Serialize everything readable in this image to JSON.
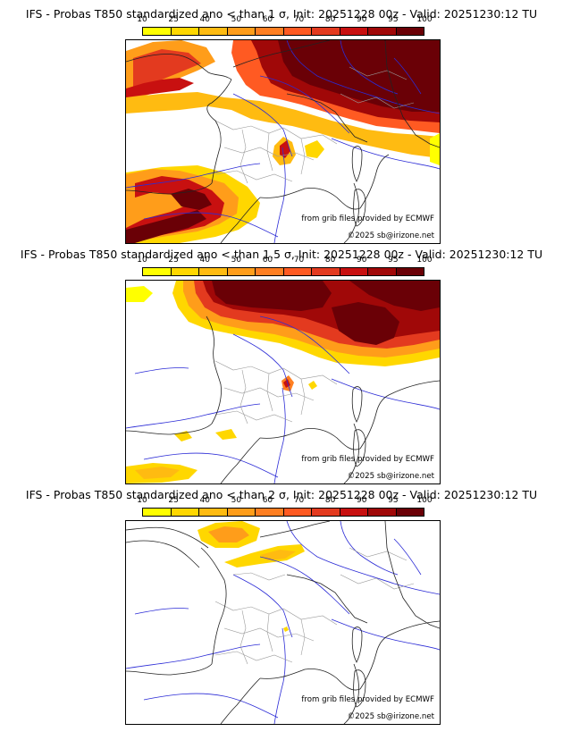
{
  "colorbar": {
    "ticks": [
      "10",
      "25",
      "40",
      "50",
      "60",
      "70",
      "80",
      "90",
      "95",
      "100"
    ],
    "colors": [
      "#ffff00",
      "#ffd700",
      "#ffbb11",
      "#ff9d1a",
      "#ff7f22",
      "#ff5a22",
      "#e33a1f",
      "#c81010",
      "#a00808",
      "#6a0006"
    ]
  },
  "panels": [
    {
      "title": "IFS - Probas T850  standardized ano < than 1 σ, Init: 20251228 00z - Valid: 20251230:12 TU",
      "source": "from grib files provided by ECMWF",
      "copyright": "©2025 sb@irizone.net"
    },
    {
      "title": "IFS - Probas T850  standardized ano < than 1.5 σ, Init: 20251228 00z - Valid: 20251230:12 TU",
      "source": "from grib files provided by ECMWF",
      "copyright": "©2025 sb@irizone.net"
    },
    {
      "title": "IFS - Probas T850  standardized ano < than 2 σ, Init: 20251228 00z - Valid: 20251230:12 TU",
      "source": "from grib files provided by ECMWF",
      "copyright": "©2025 sb@irizone.net"
    }
  ]
}
